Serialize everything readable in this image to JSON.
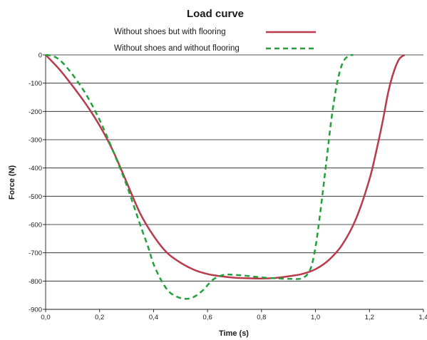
{
  "chart_data": {
    "type": "line",
    "title": "Load curve",
    "xlabel": "Time (s)",
    "ylabel": "Force (N)",
    "xlim": [
      0,
      1.4
    ],
    "ylim": [
      -900,
      0
    ],
    "x_ticks": [
      0,
      0.2,
      0.4,
      0.6,
      0.8,
      1.0,
      1.2,
      1.4
    ],
    "x_tick_labels": [
      "0,0",
      "0,2",
      "0,4",
      "0,6",
      "0,8",
      "1,0",
      "1,2",
      "1,4"
    ],
    "y_ticks": [
      0,
      -100,
      -200,
      -300,
      -400,
      -500,
      -600,
      -700,
      -800,
      -900
    ],
    "y_tick_labels": [
      "0",
      "-100",
      "-200",
      "-300",
      "-400",
      "-500",
      "-600",
      "-700",
      "-800",
      "-900"
    ],
    "grid": "horizontal",
    "legend_position": "top",
    "series": [
      {
        "name": "Without shoes but with flooring",
        "color": "#b83a4b",
        "style": "solid",
        "x": [
          0.0,
          0.05,
          0.1,
          0.15,
          0.2,
          0.25,
          0.3,
          0.35,
          0.4,
          0.45,
          0.5,
          0.55,
          0.6,
          0.65,
          0.7,
          0.75,
          0.8,
          0.85,
          0.9,
          0.95,
          1.0,
          1.05,
          1.1,
          1.15,
          1.2,
          1.23,
          1.25,
          1.27,
          1.29,
          1.31,
          1.33
        ],
        "y": [
          0,
          -50,
          -110,
          -175,
          -250,
          -340,
          -450,
          -560,
          -640,
          -700,
          -735,
          -760,
          -775,
          -783,
          -788,
          -790,
          -791,
          -789,
          -783,
          -775,
          -758,
          -725,
          -670,
          -580,
          -440,
          -320,
          -230,
          -130,
          -60,
          -15,
          0
        ]
      },
      {
        "name": "Without shoes and without flooring",
        "color": "#22a03a",
        "style": "dashed",
        "x": [
          0.0,
          0.03,
          0.06,
          0.1,
          0.15,
          0.2,
          0.25,
          0.3,
          0.35,
          0.38,
          0.4,
          0.43,
          0.46,
          0.5,
          0.54,
          0.58,
          0.62,
          0.66,
          0.7,
          0.75,
          0.8,
          0.85,
          0.9,
          0.95,
          0.98,
          1.0,
          1.02,
          1.04,
          1.06,
          1.08,
          1.1,
          1.12,
          1.14
        ],
        "y": [
          0,
          -5,
          -25,
          -70,
          -140,
          -230,
          -340,
          -460,
          -600,
          -680,
          -740,
          -800,
          -840,
          -860,
          -860,
          -835,
          -795,
          -778,
          -778,
          -782,
          -787,
          -790,
          -792,
          -790,
          -760,
          -680,
          -540,
          -380,
          -220,
          -100,
          -30,
          -5,
          0
        ]
      }
    ]
  }
}
